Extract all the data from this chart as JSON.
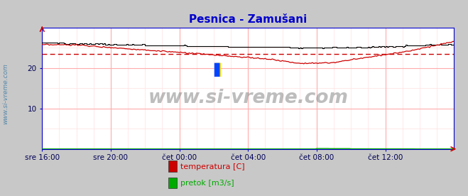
{
  "title": "Pesnica - Zamušani",
  "title_color": "#0000cc",
  "bg_color": "#c8c8c8",
  "plot_bg_color": "#ffffff",
  "grid_color_major": "#ffaaaa",
  "grid_color_minor": "#ffe0e0",
  "ylabel_text": "www.si-vreme.com",
  "ylabel_color": "#5588aa",
  "watermark": "www.si-vreme.com",
  "xlim": [
    0,
    288
  ],
  "ylim": [
    0,
    30
  ],
  "xtick_labels": [
    "sre 16:00",
    "sre 20:00",
    "čet 00:00",
    "čet 04:00",
    "čet 08:00",
    "čet 12:00"
  ],
  "xtick_positions": [
    0,
    48,
    96,
    144,
    192,
    240
  ],
  "avg_temp": 23.5,
  "legend_entries": [
    "temperatura [C]",
    "pretok [m3/s]"
  ],
  "legend_colors": [
    "#cc0000",
    "#00aa00"
  ],
  "border_color": "#0000cc",
  "temp_color": "#cc0000",
  "flow_color": "#00aa00",
  "height_color": "#000000"
}
